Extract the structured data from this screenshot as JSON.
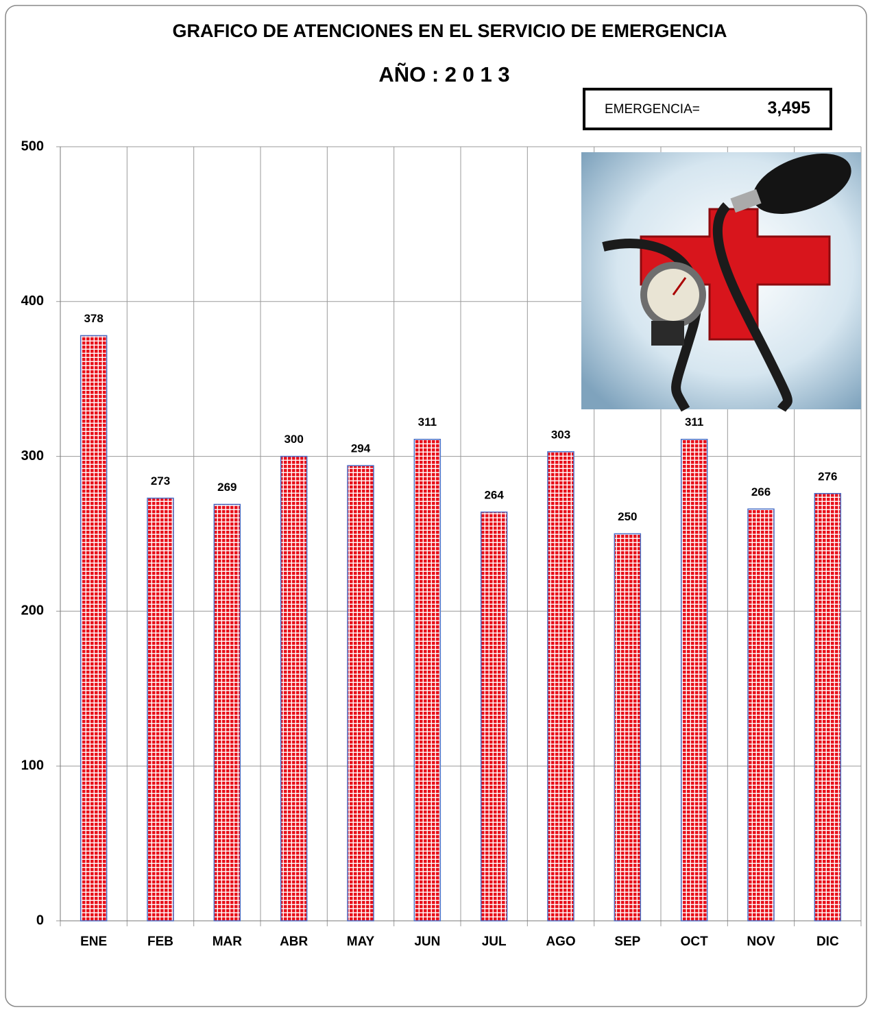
{
  "chart_data": {
    "type": "bar",
    "title": "GRAFICO DE ATENCIONES EN EL SERVICIO DE EMERGENCIA",
    "subtitle": "AÑO : 2 0 1 3",
    "total": {
      "label": "EMERGENCIA=",
      "value": 3495,
      "value_label": "3,495"
    },
    "categories": [
      "ENE",
      "FEB",
      "MAR",
      "ABR",
      "MAY",
      "JUN",
      "JUL",
      "AGO",
      "SEP",
      "OCT",
      "NOV",
      "DIC"
    ],
    "values": [
      378,
      273,
      269,
      300,
      294,
      311,
      264,
      303,
      250,
      311,
      266,
      276
    ],
    "color": "#e8101a",
    "ylim": [
      0,
      500
    ],
    "yticks": [
      0,
      100,
      200,
      300,
      400,
      500
    ],
    "grid": true
  }
}
